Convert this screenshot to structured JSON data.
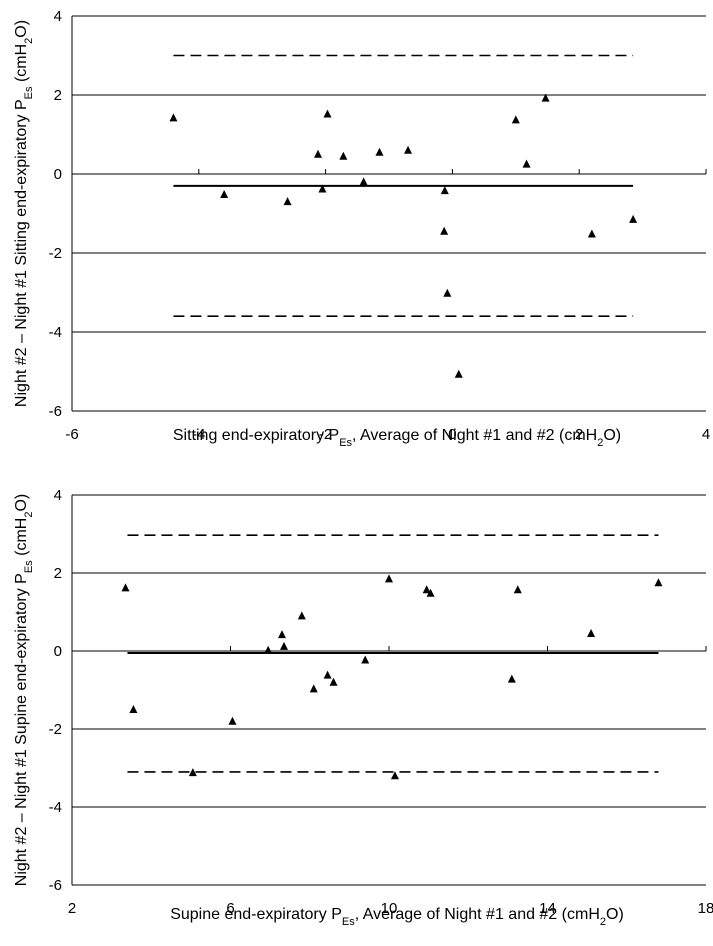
{
  "chart_data": [
    {
      "type": "scatter",
      "title": "",
      "xlabel": "Sitting end-expiratory P_Es, Average of Night #1 and #2 (cmH2O)",
      "ylabel": "Night #2 – Night #1 Sitting end-expiratory P_Es (cmH2O)",
      "xlabel_parts": [
        "Sitting end-expiratory P",
        "Es",
        ", Average of Night #1 and #2 (cmH",
        "2",
        "O)"
      ],
      "ylabel_parts": [
        "Night #2 – Night #1 Sitting end-expiratory P",
        "Es",
        " (cmH",
        "2",
        "O)"
      ],
      "xlim": [
        -6,
        4
      ],
      "ylim": [
        -6,
        4
      ],
      "xticks": [
        -6,
        -4,
        -2,
        0,
        2,
        4
      ],
      "yticks": [
        -6,
        -4,
        -2,
        0,
        2,
        4
      ],
      "grid": "horizontal",
      "bias_line": -0.3,
      "upper_limit": 3.0,
      "lower_limit": -3.6,
      "line_x_range": [
        -4.4,
        2.85
      ],
      "points": [
        {
          "x": -4.4,
          "y": 1.42
        },
        {
          "x": -3.6,
          "y": -0.52
        },
        {
          "x": -2.6,
          "y": -0.7
        },
        {
          "x": -2.12,
          "y": 0.5
        },
        {
          "x": -2.05,
          "y": -0.38
        },
        {
          "x": -1.97,
          "y": 1.52
        },
        {
          "x": -1.72,
          "y": 0.45
        },
        {
          "x": -1.4,
          "y": -0.2
        },
        {
          "x": -1.15,
          "y": 0.55
        },
        {
          "x": -0.7,
          "y": 0.6
        },
        {
          "x": -0.12,
          "y": -0.42
        },
        {
          "x": -0.13,
          "y": -1.45
        },
        {
          "x": -0.08,
          "y": -3.02
        },
        {
          "x": 0.1,
          "y": -5.07
        },
        {
          "x": 1.0,
          "y": 1.37
        },
        {
          "x": 1.17,
          "y": 0.25
        },
        {
          "x": 1.47,
          "y": 1.92
        },
        {
          "x": 2.2,
          "y": -1.52
        },
        {
          "x": 2.85,
          "y": -1.15
        }
      ]
    },
    {
      "type": "scatter",
      "title": "",
      "xlabel": "Supine end-expiratory P_Es, Average of Night #1 and #2 (cmH2O)",
      "ylabel": "Night #2 – Night #1 Supine end-expiratory P_Es (cmH2O)",
      "xlabel_parts": [
        "Supine end-expiratory P",
        "Es",
        ", Average of Night #1 and #2 (cmH",
        "2",
        "O)"
      ],
      "ylabel_parts": [
        "Night #2 – Night #1 Supine end-expiratory P",
        "Es",
        " (cmH",
        "2",
        "O)"
      ],
      "xlim": [
        2,
        18
      ],
      "ylim": [
        -6,
        4
      ],
      "xticks": [
        2,
        6,
        10,
        14,
        18
      ],
      "yticks": [
        -6,
        -4,
        -2,
        0,
        2,
        4
      ],
      "grid": "horizontal",
      "bias_line": -0.05,
      "upper_limit": 2.97,
      "lower_limit": -3.1,
      "line_x_range": [
        3.4,
        16.8
      ],
      "points": [
        {
          "x": 3.35,
          "y": 1.62
        },
        {
          "x": 3.55,
          "y": -1.5
        },
        {
          "x": 5.05,
          "y": -3.12
        },
        {
          "x": 6.05,
          "y": -1.8
        },
        {
          "x": 6.95,
          "y": 0.02
        },
        {
          "x": 7.3,
          "y": 0.42
        },
        {
          "x": 7.35,
          "y": 0.12
        },
        {
          "x": 7.8,
          "y": 0.9
        },
        {
          "x": 8.1,
          "y": -0.97
        },
        {
          "x": 8.45,
          "y": -0.62
        },
        {
          "x": 8.6,
          "y": -0.8
        },
        {
          "x": 9.4,
          "y": -0.23
        },
        {
          "x": 10.0,
          "y": 1.85
        },
        {
          "x": 10.15,
          "y": -3.2
        },
        {
          "x": 10.95,
          "y": 1.57
        },
        {
          "x": 11.05,
          "y": 1.48
        },
        {
          "x": 13.1,
          "y": -0.72
        },
        {
          "x": 13.25,
          "y": 1.57
        },
        {
          "x": 15.1,
          "y": 0.45
        },
        {
          "x": 16.8,
          "y": 1.75
        }
      ]
    }
  ]
}
